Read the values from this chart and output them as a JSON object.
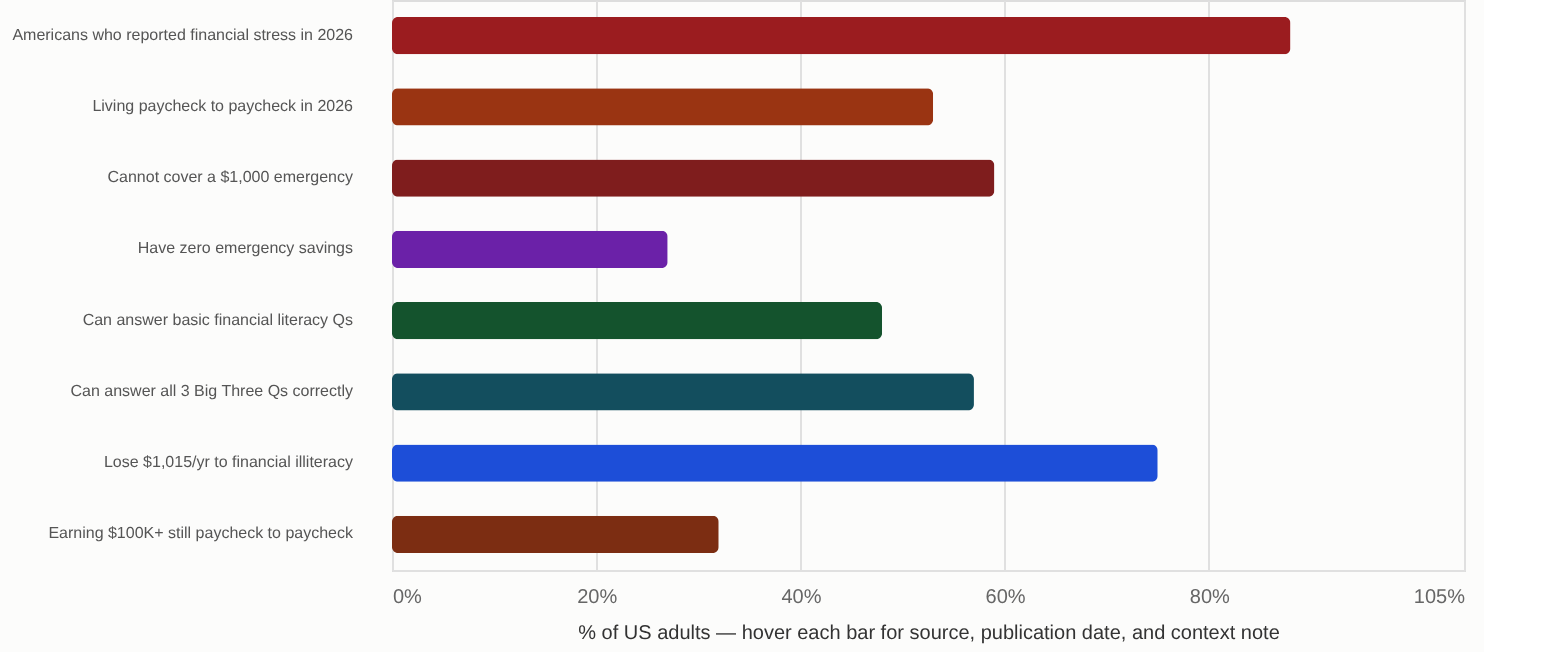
{
  "chart_data": {
    "type": "bar",
    "orientation": "horizontal",
    "categories": [
      "Americans who reported financial stress in 2026",
      "Living paycheck to paycheck in 2026",
      "Cannot cover a $1,000 emergency",
      "Have zero emergency savings",
      "Can answer basic financial literacy Qs",
      "Can answer all 3 Big Three Qs correctly",
      "Lose $1,015/yr to financial illiteracy",
      "Earning $100K+ still paycheck to paycheck"
    ],
    "values": [
      88,
      53,
      59,
      27,
      48,
      57,
      75,
      32
    ],
    "colors": [
      "#9b1c1f",
      "#9a3412",
      "#7f1d1d",
      "#6b21a8",
      "#14532d",
      "#134e5e",
      "#1d4ed8",
      "#7c2d12"
    ],
    "xlim": [
      0,
      105
    ],
    "xticks": [
      {
        "value": 0,
        "label": "0%"
      },
      {
        "value": 20,
        "label": "20%"
      },
      {
        "value": 40,
        "label": "40%"
      },
      {
        "value": 60,
        "label": "60%"
      },
      {
        "value": 80,
        "label": "80%"
      },
      {
        "value": 105,
        "label": "105%"
      }
    ],
    "xlabel": "% of US adults — hover each bar for source, publication date, and context note",
    "grid": "x"
  }
}
